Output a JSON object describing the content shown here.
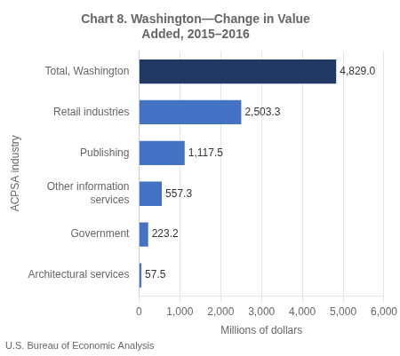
{
  "chart_data": {
    "type": "bar",
    "orientation": "horizontal",
    "title": "Chart 8. Washington—Change in Value\nAdded, 2015–2016",
    "xlabel": "Millions of dollars",
    "ylabel": "ACPSA industry",
    "annotations": [
      "U.S. Bureau of Economic Analysis"
    ],
    "categories": [
      "Architectural services",
      "Government",
      "Other information\nservices",
      "Publishing",
      "Retail industries",
      "Total, Washington"
    ],
    "values": [
      57.5,
      223.2,
      557.3,
      1117.5,
      2503.3,
      4829.0
    ],
    "value_labels": [
      "57.5",
      "223.2",
      "557.3",
      "1,117.5",
      "2,503.3",
      "4,829.0"
    ],
    "data_labels": true,
    "colors": [
      "#4472c4",
      "#4472c4",
      "#4472c4",
      "#4472c4",
      "#4472c4",
      "#1f3864"
    ],
    "xlim": [
      0,
      6000
    ],
    "xticks": [
      0,
      {
        "value": 1000,
        "label": "1,000"
      },
      {
        "value": 2000,
        "label": "2,000"
      },
      {
        "value": 3000,
        "label": "3,000"
      },
      {
        "value": 4000,
        "label": "4,000"
      },
      {
        "value": 5000,
        "label": "5,000"
      },
      {
        "value": 6000,
        "label": "6,000"
      }
    ],
    "grid": true
  }
}
